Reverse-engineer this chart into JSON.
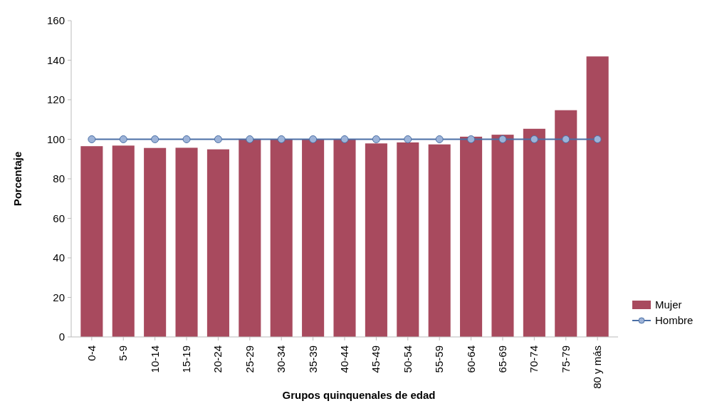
{
  "chart_data": {
    "type": "bar",
    "xlabel": "Grupos quinquenales de edad",
    "ylabel": "Porcentaje",
    "categories": [
      "0-4",
      "5-9",
      "10-14",
      "15-19",
      "20-24",
      "25-29",
      "30-34",
      "35-39",
      "40-44",
      "45-49",
      "50-54",
      "55-59",
      "60-64",
      "65-69",
      "70-74",
      "75-79",
      "80 y más"
    ],
    "series": [
      {
        "name": "Mujer",
        "color": "#a84a5e",
        "values": [
          96.5,
          96.8,
          95.6,
          95.7,
          94.9,
          100.2,
          100,
          100,
          100,
          97.9,
          98.4,
          97.4,
          101.3,
          102.3,
          105.3,
          114.7,
          141.9
        ]
      },
      {
        "name": "Hombre",
        "type": "line",
        "color": "#4a6fa5",
        "marker": "circle",
        "values": [
          100,
          100,
          100,
          100,
          100,
          100,
          100,
          100,
          100,
          100,
          100,
          100,
          100,
          100,
          100,
          100,
          100
        ]
      }
    ],
    "ylim": [
      0,
      160
    ],
    "yticks": [
      0,
      20,
      40,
      60,
      80,
      100,
      120,
      140,
      160
    ],
    "grid": false,
    "legend": "bottom right"
  }
}
